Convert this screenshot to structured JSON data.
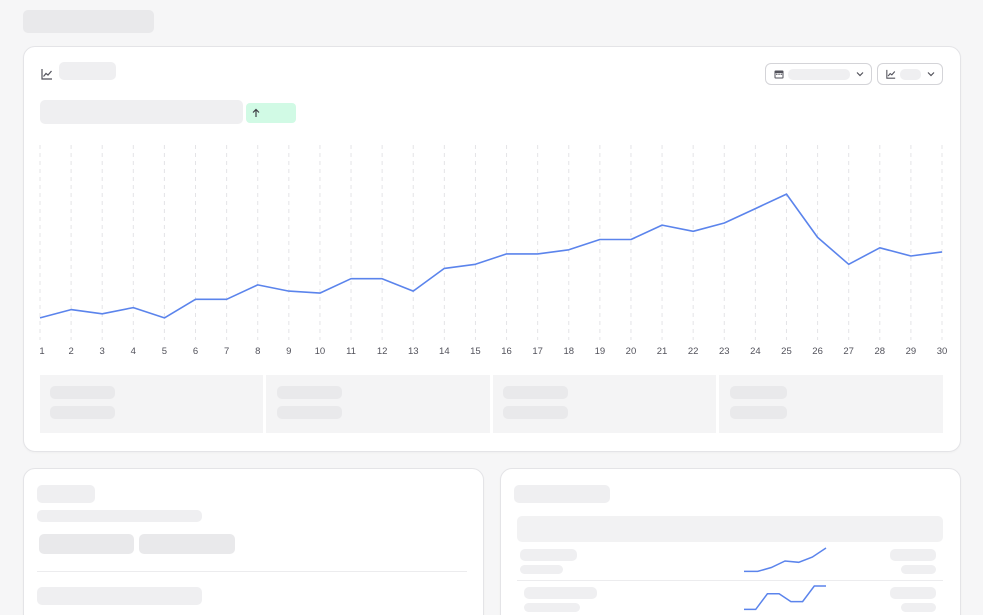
{
  "chart_data": {
    "type": "line",
    "x": [
      1,
      2,
      3,
      4,
      5,
      6,
      7,
      8,
      9,
      10,
      11,
      12,
      13,
      14,
      15,
      16,
      17,
      18,
      19,
      20,
      21,
      22,
      23,
      24,
      25,
      26,
      27,
      28,
      29,
      30
    ],
    "series": [
      {
        "values": [
          10,
          14,
          12,
          15,
          10,
          19,
          19,
          26,
          23,
          22,
          29,
          29,
          23,
          34,
          36,
          41,
          41,
          43,
          48,
          48,
          55,
          52,
          56,
          63,
          70,
          49,
          36,
          44,
          40,
          42
        ]
      }
    ],
    "xticks": [
      "1",
      "2",
      "3",
      "4",
      "5",
      "6",
      "7",
      "8",
      "9",
      "10",
      "11",
      "12",
      "13",
      "14",
      "15",
      "16",
      "17",
      "18",
      "19",
      "20",
      "21",
      "22",
      "23",
      "24",
      "25",
      "26",
      "27",
      "28",
      "29",
      "30"
    ],
    "grid": "vertical dashed",
    "line_color": "#5b84ec"
  },
  "sparklines": [
    {
      "values": [
        2,
        2,
        5,
        10,
        9,
        13,
        20
      ],
      "color": "#5b84ec"
    },
    {
      "values": [
        2,
        2,
        14,
        14,
        8,
        8,
        20,
        20
      ],
      "color": "#5b84ec"
    }
  ],
  "colors": {
    "accent": "#5b84ec",
    "badge_up_bg": "#d1fae5",
    "skeleton": "#e9e9eb"
  },
  "icons": {
    "chart_card": "line-chart-icon",
    "date_picker": "calendar-icon",
    "chart_type": "line-chart-icon",
    "trend": "arrow-up-icon"
  }
}
